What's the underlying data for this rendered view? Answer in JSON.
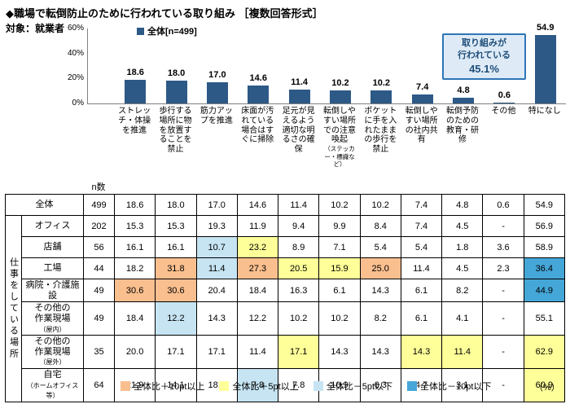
{
  "title": "◆職場で転倒防止のために行われている取り組み ［複数回答形式］",
  "target": "対象：就業者",
  "series_label": "全体[n=499]",
  "percent_label": "（%）",
  "callout": {
    "line1": "取り組みが",
    "line2": "行われている",
    "value": "45.1%"
  },
  "colors": {
    "bar": "#2D5986",
    "callout_border": "#2E75B6",
    "callout_bg": "#DEEBF7",
    "callout_text": "#1F4E79",
    "highlight": {
      "p10": "#FABF8F",
      "p5": "#FFFF99",
      "m5": "#C6E4F2",
      "m10": "#45A7D8"
    }
  },
  "chart_data": {
    "type": "bar",
    "title": "職場で転倒防止のために行われている取り組み［複数回答形式］",
    "ylabel": "%",
    "ylim": [
      0,
      60
    ],
    "yticks": [
      60,
      40,
      20,
      0
    ],
    "legend_position": "top-left",
    "annotation": "取り組みが行われている 45.1%",
    "categories": [
      {
        "main": "ストレッチ・体操を推進",
        "sub": ""
      },
      {
        "main": "歩行する場所に物を放置することを禁止",
        "sub": ""
      },
      {
        "main": "筋力アップを推進",
        "sub": ""
      },
      {
        "main": "床面が汚れている場合はすぐに掃除",
        "sub": ""
      },
      {
        "main": "足元が見えるよう適切な明るさの確保",
        "sub": ""
      },
      {
        "main": "転倒しやすい場所での注意喚起",
        "sub": "（ステッカー・標識など）"
      },
      {
        "main": "ポケットに手を入れたままの歩行を禁止",
        "sub": ""
      },
      {
        "main": "転倒しやすい場所の社内共有",
        "sub": ""
      },
      {
        "main": "転倒予防のための教育・研修",
        "sub": ""
      },
      {
        "main": "その他",
        "sub": ""
      },
      {
        "main": "特になし",
        "sub": ""
      }
    ],
    "series": [
      {
        "name": "全体[n=499]",
        "values": [
          18.6,
          18.0,
          17.0,
          14.6,
          11.4,
          10.2,
          10.2,
          7.4,
          4.8,
          0.6,
          54.9
        ]
      }
    ]
  },
  "table": {
    "n_header": "n数",
    "group_label": "仕事をしている場所",
    "rows": [
      {
        "label": {
          "lines": [
            {
              "text": "全体",
              "small": ""
            }
          ]
        },
        "n": "499",
        "values": [
          "18.6",
          "18.0",
          "17.0",
          "14.6",
          "11.4",
          "10.2",
          "10.2",
          "7.4",
          "4.8",
          "0.6",
          "54.9"
        ],
        "hl": [
          "",
          "",
          "",
          "",
          "",
          "",
          "",
          "",
          "",
          "",
          ""
        ]
      },
      {
        "label": {
          "lines": [
            {
              "text": "オフィス",
              "small": ""
            }
          ]
        },
        "n": "202",
        "values": [
          "15.3",
          "15.3",
          "19.3",
          "11.9",
          "9.4",
          "9.9",
          "8.4",
          "7.4",
          "4.5",
          "-",
          "56.9"
        ],
        "hl": [
          "",
          "",
          "",
          "",
          "",
          "",
          "",
          "",
          "",
          "",
          ""
        ]
      },
      {
        "label": {
          "lines": [
            {
              "text": "店舗",
              "small": ""
            }
          ]
        },
        "n": "56",
        "values": [
          "16.1",
          "16.1",
          "10.7",
          "23.2",
          "8.9",
          "7.1",
          "5.4",
          "5.4",
          "1.8",
          "3.6",
          "58.9"
        ],
        "hl": [
          "",
          "",
          "m5",
          "p5",
          "",
          "",
          "",
          "",
          "",
          "",
          ""
        ]
      },
      {
        "label": {
          "lines": [
            {
              "text": "工場",
              "small": ""
            }
          ]
        },
        "n": "44",
        "values": [
          "18.2",
          "31.8",
          "11.4",
          "27.3",
          "20.5",
          "15.9",
          "25.0",
          "11.4",
          "4.5",
          "2.3",
          "36.4"
        ],
        "hl": [
          "",
          "p10",
          "m5",
          "p10",
          "p5",
          "p5",
          "p10",
          "",
          "",
          "",
          "m10"
        ]
      },
      {
        "label": {
          "lines": [
            {
              "text": "病院・介護施設",
              "small": ""
            }
          ]
        },
        "n": "49",
        "values": [
          "30.6",
          "30.6",
          "20.4",
          "18.4",
          "16.3",
          "6.1",
          "14.3",
          "6.1",
          "8.2",
          "-",
          "44.9"
        ],
        "hl": [
          "p10",
          "p10",
          "",
          "",
          "",
          "",
          "",
          "",
          "",
          "",
          "m10"
        ]
      },
      {
        "label": {
          "lines": [
            {
              "text": "その他の",
              "small": ""
            },
            {
              "text": "作業現場",
              "small": "（屋内）"
            }
          ]
        },
        "n": "49",
        "values": [
          "18.4",
          "12.2",
          "14.3",
          "12.2",
          "10.2",
          "10.2",
          "8.2",
          "6.1",
          "4.1",
          "-",
          "55.1"
        ],
        "hl": [
          "",
          "m5",
          "",
          "",
          "",
          "",
          "",
          "",
          "",
          "",
          ""
        ]
      },
      {
        "label": {
          "lines": [
            {
              "text": "その他の",
              "small": ""
            },
            {
              "text": "作業現場",
              "small": "（屋外）"
            }
          ]
        },
        "n": "35",
        "values": [
          "20.0",
          "17.1",
          "17.1",
          "11.4",
          "17.1",
          "14.3",
          "14.3",
          "14.3",
          "11.4",
          "-",
          "62.9"
        ],
        "hl": [
          "",
          "",
          "",
          "",
          "p5",
          "",
          "",
          "p5",
          "p5",
          "",
          "p5"
        ]
      },
      {
        "label": {
          "lines": [
            {
              "text": "自宅",
              "small": ""
            },
            {
              "text": "",
              "small": "（ホームオフィス等）"
            }
          ]
        },
        "n": "64",
        "values": [
          "21.9",
          "14.1",
          "18.8",
          "7.8",
          "7.8",
          "10.9",
          "6.3",
          "4.7",
          "3.1",
          "-",
          "60.9"
        ],
        "hl": [
          "",
          "",
          "",
          "m5",
          "",
          "",
          "",
          "",
          "",
          "",
          "p5"
        ]
      }
    ]
  },
  "hl_legend": [
    {
      "key": "p10",
      "label": "全体比＋10pt以上"
    },
    {
      "key": "p5",
      "label": "全体比＋5pt以上"
    },
    {
      "key": "m5",
      "label": "全体比－5pt以下"
    },
    {
      "key": "m10",
      "label": "全体比－10pt以下"
    }
  ]
}
